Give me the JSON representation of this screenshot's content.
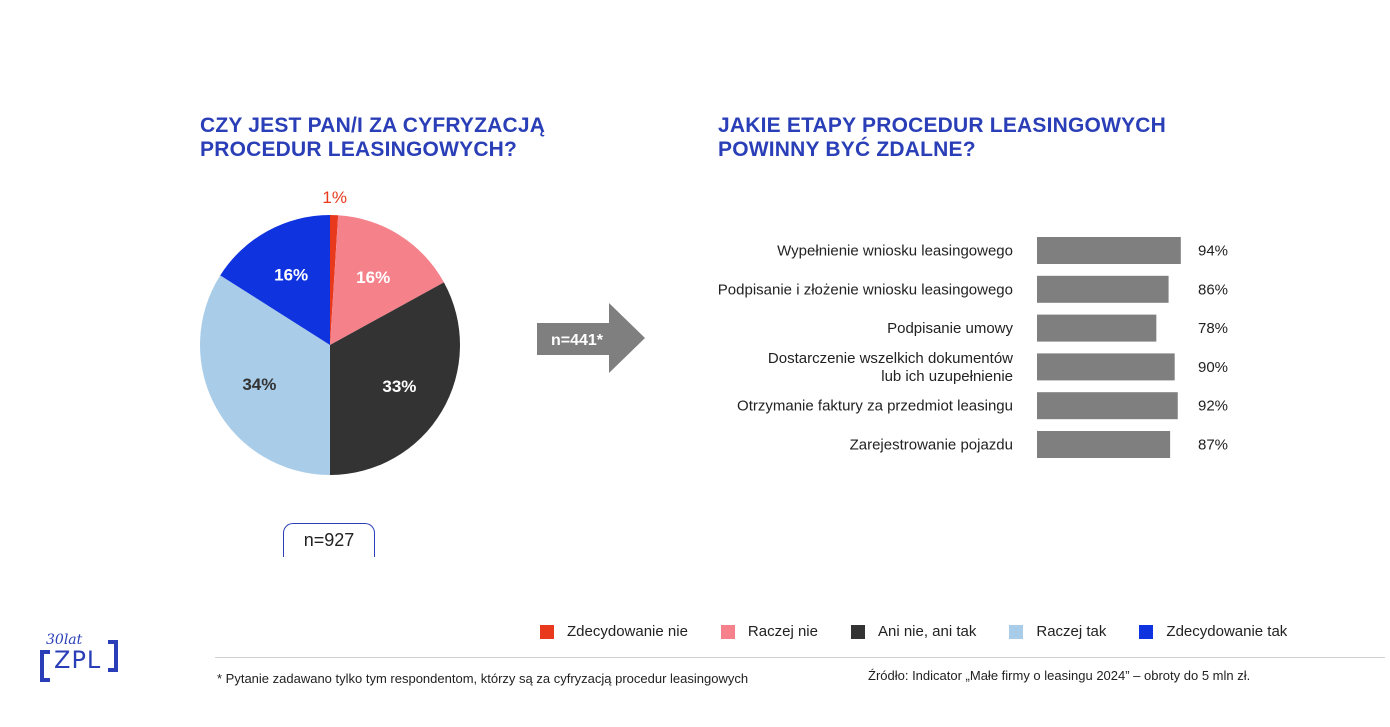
{
  "pie_title": {
    "line1": "CZY JEST PAN/I ZA CYFRYZACJĄ",
    "line2": "PROCEDUR LEASINGOWYCH?"
  },
  "bar_title": {
    "line1": "JAKIE ETAPY PROCEDUR LEASINGOWYCH",
    "line2": "POWINNY BYĆ ZDALNE?"
  },
  "pie_n": "n=927",
  "arrow_n": "n=441*",
  "footnote": "* Pytanie zadawano tylko tym respondentom, którzy są za cyfryzacją procedur leasingowych",
  "source": "Źródło: Indicator „Małe firmy o leasingu 2024” – obroty do 5 mln zł.",
  "logo": {
    "top": "30lat",
    "text": "ZPL"
  },
  "chart_data": [
    {
      "type": "pie",
      "title": "CZY JEST PAN/I ZA CYFRYZACJĄ PROCEDUR LEASINGOWYCH?",
      "slices": [
        {
          "name": "Zdecydowanie nie",
          "value": 1,
          "label": "1%",
          "color": "#e8391d"
        },
        {
          "name": "Raczej nie",
          "value": 16,
          "label": "16%",
          "color": "#f5828a"
        },
        {
          "name": "Ani nie, ani tak",
          "value": 33,
          "label": "33%",
          "color": "#333333"
        },
        {
          "name": "Raczej tak",
          "value": 34,
          "label": "34%",
          "color": "#a9cde9"
        },
        {
          "name": "Zdecydowanie tak",
          "value": 16,
          "label": "16%",
          "color": "#1033e0"
        }
      ],
      "legend_placement": "bottom"
    },
    {
      "type": "bar",
      "orientation": "horizontal",
      "title": "JAKIE ETAPY PROCEDUR LEASINGOWYCH POWINNY BYĆ ZDALNE?",
      "categories": [
        [
          "Wypełnienie wniosku leasingowego"
        ],
        [
          "Podpisanie i złożenie wniosku leasingowego"
        ],
        [
          "Podpisanie umowy"
        ],
        [
          "Dostarczenie wszelkich dokumentów",
          "lub ich uzupełnienie"
        ],
        [
          "Otrzymanie faktury za przedmiot leasingu"
        ],
        [
          "Zarejestrowanie pojazdu"
        ]
      ],
      "values": [
        94,
        86,
        78,
        90,
        92,
        87
      ],
      "value_labels": [
        "94%",
        "86%",
        "78%",
        "90%",
        "92%",
        "87%"
      ],
      "bar_color": "#7f7f7f",
      "xlim": [
        0,
        100
      ]
    }
  ]
}
